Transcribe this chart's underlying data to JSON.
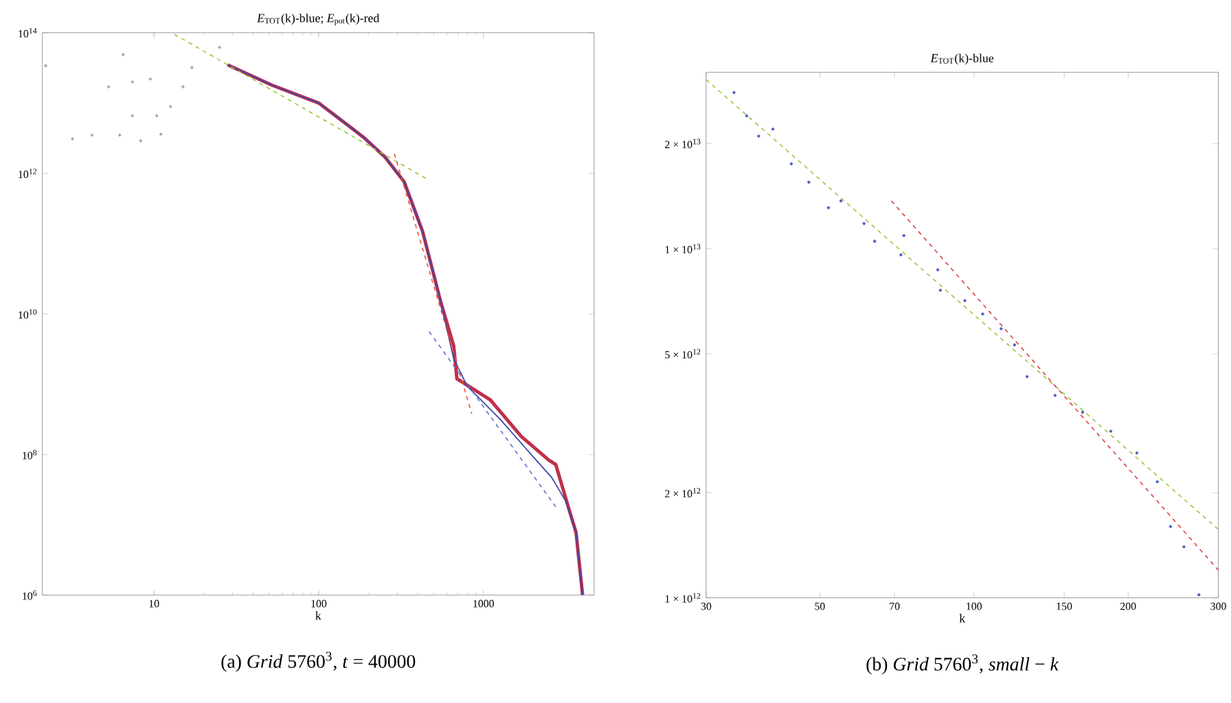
{
  "chart_data": [
    {
      "type": "line",
      "title": "*E*$_{TOT}$(k)-blue; *E*$_{pot}$(k)-red",
      "xlabel": "k",
      "log": "xy",
      "xlim": [
        2.1,
        4700
      ],
      "ylim": [
        1000000.0,
        100000000000000.0
      ],
      "xticks": [
        10,
        100,
        1000
      ],
      "yticks": [
        {
          "value": 1000000.0,
          "label": "10$^{6}$"
        },
        {
          "value": 100000000.0,
          "label": "10$^{8}$"
        },
        {
          "value": 10000000000.0,
          "label": "10$^{10}$"
        },
        {
          "value": 1000000000000.0,
          "label": "10$^{12}$"
        },
        {
          "value": 100000000000000.0,
          "label": "10$^{14}$"
        }
      ],
      "annotations": [
        "(a) *Grid* 5760$^{3}$, *t* = 40000"
      ],
      "series": [
        {
          "type": "scatter",
          "marker": "circle",
          "color": "#a8a8b8",
          "x": [
            2.2,
            3.2,
            4.2,
            5.3,
            6.2,
            6.5,
            7.4,
            7.4,
            8.3,
            9.5,
            10.4,
            11,
            12.6,
            15,
            17,
            25
          ],
          "values": [
            34000000000000.0,
            3100000000000.0,
            3500000000000.0,
            17000000000000.0,
            3500000000000.0,
            49000000000000.0,
            6600000000000.0,
            20000000000000.0,
            2900000000000.0,
            22000000000000.0,
            6600000000000.0,
            3600000000000.0,
            8900000000000.0,
            17000000000000.0,
            32000000000000.0,
            62000000000000.0
          ]
        },
        {
          "color": "#c0304a",
          "line_style": "solid",
          "x": [
            28,
            52,
            100,
            186,
            253,
            330,
            427,
            550,
            660,
            690,
            1100,
            1700,
            2500,
            2750,
            3300,
            3650,
            4000
          ],
          "values": [
            35000000000000.0,
            18000000000000.0,
            10000000000000.0,
            3300000000000.0,
            1700000000000.0,
            760000000000.0,
            150000000000.0,
            15000000000.0,
            3500000000.0,
            1200000000.0,
            600000000.0,
            180000000.0,
            83000000.0,
            72000000.0,
            17000000.0,
            7800000.0,
            1000000.0
          ]
        },
        {
          "color": "#3a48a8",
          "line_style": "solid",
          "x": [
            28,
            52,
            100,
            186,
            253,
            330,
            427,
            550,
            660,
            800,
            1260,
            1950,
            2600,
            3150,
            3650,
            4000
          ],
          "values": [
            35000000000000.0,
            18000000000000.0,
            10000000000000.0,
            3300000000000.0,
            1700000000000.0,
            760000000000.0,
            150000000000.0,
            15000000000.0,
            2300000000.0,
            930000000.0,
            320000000.0,
            100000000.0,
            47000000.0,
            22000000.0,
            7800000.0,
            1000000.0
          ]
        },
        {
          "color": "#9bc63b",
          "line_style": "dashed",
          "x": [
            13.3,
            468
          ],
          "values": [
            95000000000000.0,
            800000000000.0
          ]
        },
        {
          "color": "#e8503a",
          "line_style": "dashed",
          "x": [
            288,
            850
          ],
          "values": [
            1900000000000.0,
            380000000.0
          ]
        },
        {
          "color": "#6070c8",
          "line_style": "dashed",
          "x": [
            468,
            2800
          ],
          "values": [
            5600000000.0,
            17000000.0
          ]
        }
      ]
    },
    {
      "type": "line",
      "title": "*E*$_{TOT}$(k)-blue",
      "xlabel": "k",
      "log": "xy",
      "xlim": [
        30,
        300
      ],
      "ylim": [
        1000000000000.0,
        32000000000000.0
      ],
      "xticks": [
        30,
        50,
        70,
        100,
        150,
        200,
        300
      ],
      "yticks": [
        {
          "value": 1000000000000.0,
          "label": "1 × 10$^{12}$"
        },
        {
          "value": 2000000000000.0,
          "label": "2 × 10$^{12}$"
        },
        {
          "value": 5000000000000.0,
          "label": "5 × 10$^{12}$"
        },
        {
          "value": 10000000000000.0,
          "label": "1 × 10$^{13}$"
        },
        {
          "value": 20000000000000.0,
          "label": "2 × 10$^{13}$"
        }
      ],
      "annotations": [
        "(b) *Grid* 5760$^{3}$, *small* − *k*"
      ],
      "series": [
        {
          "color": "#9bc63b",
          "line_style": "dashed",
          "x": [
            30,
            300
          ],
          "values": [
            30500000000000.0,
            1570000000000.0
          ]
        },
        {
          "color": "#e03c3c",
          "line_style": "dashed",
          "x": [
            69,
            300
          ],
          "values": [
            13700000000000.0,
            1200000000000.0
          ]
        },
        {
          "type": "scatter",
          "marker": "circle",
          "color": "#4a5fc0",
          "x": [
            34,
            36,
            38,
            40.5,
            44,
            47.6,
            52,
            55,
            61,
            64,
            72,
            73,
            85,
            86,
            96,
            104,
            113,
            120,
            127,
            144,
            163,
            185,
            208,
            228,
            242,
            257,
            275
          ],
          "values": [
            28000000000000.0,
            24000000000000.0,
            21000000000000.0,
            22000000000000.0,
            17500000000000.0,
            15500000000000.0,
            13100000000000.0,
            13700000000000.0,
            11800000000000.0,
            10500000000000.0,
            9600000000000.0,
            10900000000000.0,
            8700000000000.0,
            7600000000000.0,
            7100000000000.0,
            6500000000000.0,
            5900000000000.0,
            5300000000000.0,
            4300000000000.0,
            3800000000000.0,
            3400000000000.0,
            3000000000000.0,
            2600000000000.0,
            2150000000000.0,
            1600000000000.0,
            1400000000000.0,
            1020000000000.0
          ]
        }
      ]
    }
  ]
}
